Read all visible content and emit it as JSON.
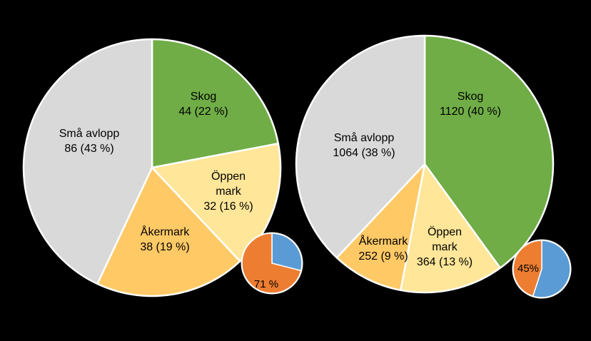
{
  "chart_data": [
    {
      "type": "pie",
      "slices": [
        {
          "name": "Skog",
          "value": 44,
          "percent_label": "44 (22 %)",
          "color": "#70AD47"
        },
        {
          "name": "Öppen mark",
          "value": 32,
          "percent_label": "32 (16 %)",
          "color": "#FFE699"
        },
        {
          "name": "Åkermark",
          "value": 38,
          "percent_label": "38 (19 %)",
          "color": "#FFC966"
        },
        {
          "name": "Små avlopp",
          "value": 86,
          "percent_label": "86 (43 %)",
          "color": "#D9D9D9"
        }
      ],
      "inset": {
        "type": "pie",
        "label": "71 %",
        "slices": [
          {
            "value": 29,
            "color": "#5B9BD5"
          },
          {
            "value": 71,
            "color": "#ED7D31"
          }
        ]
      }
    },
    {
      "type": "pie",
      "slices": [
        {
          "name": "Skog",
          "value": 1120,
          "percent_label": "1120 (40 %)",
          "color": "#70AD47"
        },
        {
          "name": "Öppen mark",
          "value": 364,
          "percent_label": "364 (13 %)",
          "color": "#FFE699"
        },
        {
          "name": "Åkermark",
          "value": 252,
          "percent_label": "252 (9 %)",
          "color": "#FFC966"
        },
        {
          "name": "Små avlopp",
          "value": 1064,
          "percent_label": "1064 (38 %)",
          "color": "#D9D9D9"
        }
      ],
      "inset": {
        "type": "pie",
        "label": "45%",
        "slices": [
          {
            "value": 55,
            "color": "#5B9BD5"
          },
          {
            "value": 45,
            "color": "#ED7D31"
          }
        ]
      }
    }
  ]
}
